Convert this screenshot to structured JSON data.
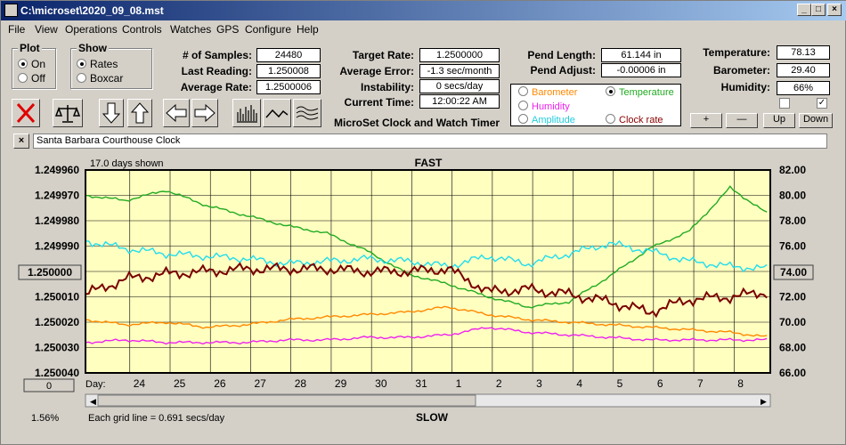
{
  "window": {
    "title": "C:\\microset\\2020_09_08.mst"
  },
  "menu": [
    "File",
    "View",
    "Operations",
    "Controls",
    "Watches",
    "GPS",
    "Configure",
    "Help"
  ],
  "plot_group": {
    "title": "Plot",
    "on": "On",
    "off": "Off"
  },
  "show_group": {
    "title": "Show",
    "rates": "Rates",
    "boxcar": "Boxcar"
  },
  "stats": {
    "samples_label": "# of Samples:",
    "samples": "24480",
    "last_label": "Last Reading:",
    "last": "1.250008",
    "avg_rate_label": "Average Rate:",
    "avg_rate": "1.2500006",
    "target_label": "Target Rate:",
    "target": "1.2500000",
    "avg_err_label": "Average Error:",
    "avg_err": "-1.3 sec/month",
    "instab_label": "Instability:",
    "instab": "0 secs/day",
    "time_label": "Current Time:",
    "time": "12:00:22 AM",
    "pend_len_label": "Pend Length:",
    "pend_len": "61.144 in",
    "pend_adj_label": "Pend Adjust:",
    "pend_adj": "-0.00006 in",
    "temp_label": "Temperature:",
    "temp": "78.13",
    "baro_label": "Barometer:",
    "baro": "29.40",
    "hum_label": "Humidity:",
    "hum": "66%"
  },
  "app_caption": "MicroSet Clock and Watch Timer",
  "sensors": {
    "barometer": "Barometer",
    "temperature": "Temperature",
    "humidity": "Humidity",
    "amplitude": "Amplitude",
    "clock_rate": "Clock rate"
  },
  "scale_buttons": {
    "plus": "+",
    "minus": "—",
    "up": "Up",
    "down": "Down"
  },
  "clock_name": "Santa Barbara Courthouse Clock",
  "colors": {
    "temperature": "#22aa22",
    "barometer": "#ff8800",
    "humidity": "#ee22ee",
    "amplitude": "#22ddee",
    "rate": "#7a0000",
    "plot_bg": "#ffffc0"
  },
  "chart_data": {
    "type": "line",
    "top_label": "FAST",
    "bottom_label": "SLOW",
    "days_shown": "17.0 days shown",
    "grid_note": "Each grid line = 0.691 secs/day",
    "left_ticks": [
      "1.249960",
      "1.249970",
      "1.249980",
      "1.249990",
      "1.250000",
      "1.250010",
      "1.250020",
      "1.250030",
      "1.250040"
    ],
    "left_center_button": "1.250000",
    "right_ticks": [
      "82.00",
      "80.00",
      "78.00",
      "76.00",
      "74.00",
      "72.00",
      "70.00",
      "68.00",
      "66.00"
    ],
    "right_center_button": "74.00",
    "x_label": "Day:",
    "x_ticks": [
      "24",
      "25",
      "26",
      "27",
      "28",
      "29",
      "30",
      "31",
      "1",
      "2",
      "3",
      "4",
      "5",
      "6",
      "7",
      "8"
    ],
    "zero_button": "0",
    "percent": "1.56%",
    "ylim_left": [
      1.24996,
      1.25004
    ],
    "ylim_right": [
      66,
      82
    ],
    "series": [
      {
        "name": "Temperature",
        "axis": "right",
        "x": [
          0,
          1,
          2,
          3,
          4,
          5,
          6,
          7,
          8,
          9,
          10,
          11,
          12,
          13,
          14,
          15,
          16,
          17
        ],
        "values": [
          80.0,
          79.6,
          80.4,
          79.2,
          78.4,
          77.6,
          77.0,
          75.6,
          73.8,
          73.0,
          72.0,
          71.2,
          71.6,
          73.6,
          75.8,
          77.2,
          80.6,
          78.4
        ]
      },
      {
        "name": "Barometer",
        "axis": "right",
        "x": [
          0,
          1,
          2,
          3,
          4,
          5,
          6,
          7,
          8,
          9,
          10,
          11,
          12,
          13,
          14,
          15,
          16,
          17
        ],
        "values": [
          70.2,
          69.8,
          70.0,
          69.6,
          69.8,
          70.2,
          70.4,
          70.6,
          70.8,
          71.2,
          70.6,
          70.2,
          70.0,
          69.8,
          69.6,
          69.4,
          69.2,
          68.8
        ]
      },
      {
        "name": "Humidity",
        "axis": "right",
        "x": [
          0,
          1,
          2,
          3,
          4,
          5,
          6,
          7,
          8,
          9,
          10,
          11,
          12,
          13,
          14,
          15,
          16,
          17
        ],
        "values": [
          68.4,
          68.6,
          68.4,
          68.4,
          68.4,
          68.6,
          68.6,
          68.8,
          68.8,
          69.0,
          69.6,
          69.2,
          69.0,
          68.8,
          68.6,
          68.6,
          68.6,
          68.6
        ]
      },
      {
        "name": "Amplitude",
        "axis": "right",
        "x": [
          0,
          1,
          2,
          3,
          4,
          5,
          6,
          7,
          8,
          9,
          10,
          11,
          12,
          13,
          14,
          15,
          16,
          17
        ],
        "values": [
          76.4,
          75.8,
          75.4,
          75.2,
          75.0,
          74.6,
          74.8,
          75.0,
          74.8,
          74.4,
          75.2,
          74.6,
          75.4,
          76.2,
          75.6,
          74.8,
          74.4,
          74.2
        ]
      },
      {
        "name": "Clock rate",
        "axis": "left",
        "x": [
          0,
          1,
          2,
          3,
          4,
          5,
          6,
          7,
          8,
          9,
          10,
          11,
          12,
          13,
          14,
          15,
          16,
          17
        ],
        "values": [
          1.250009,
          1.250003,
          1.250001,
          1.25,
          1.249999,
          1.249999,
          1.249999,
          1.25,
          1.25,
          1.249999,
          1.250008,
          1.250007,
          1.250009,
          1.250012,
          1.250016,
          1.250011,
          1.25001,
          1.250008
        ]
      }
    ]
  }
}
